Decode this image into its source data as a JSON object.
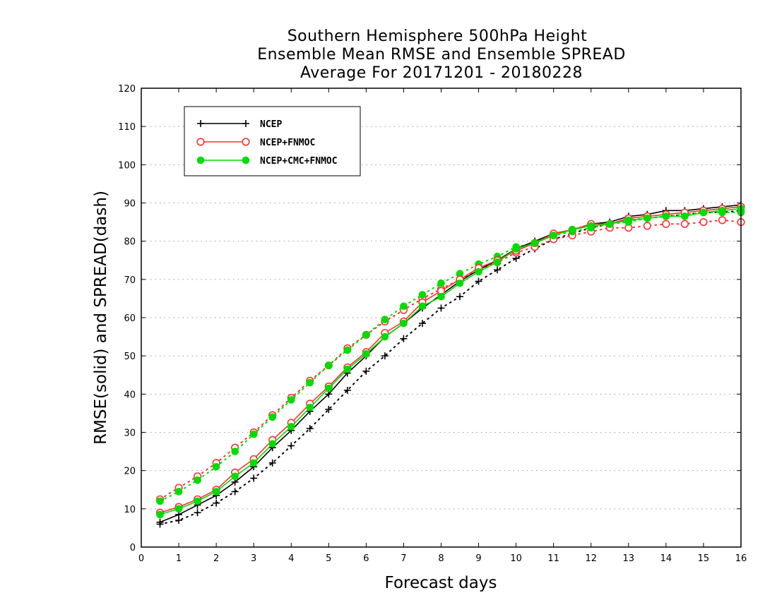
{
  "chart_data": {
    "type": "line",
    "title": [
      "Southern Hemisphere 500hPa Height",
      "Ensemble Mean RMSE and Ensemble SPREAD",
      "Average For 20171201 - 20180228"
    ],
    "xlabel": "Forecast days",
    "ylabel": "RMSE(solid) and SPREAD(dash)",
    "xlim": [
      0,
      16
    ],
    "ylim": [
      0,
      120
    ],
    "xticks": [
      "0",
      "1",
      "2",
      "3",
      "4",
      "5",
      "6",
      "7",
      "8",
      "9",
      "10",
      "11",
      "12",
      "13",
      "14",
      "15",
      "16"
    ],
    "yticks": [
      "0",
      "10",
      "20",
      "30",
      "40",
      "50",
      "60",
      "70",
      "80",
      "90",
      "100",
      "110",
      "120"
    ],
    "grid": "horizontal dotted",
    "legend_position": "top-left",
    "x": [
      0.5,
      1,
      1.5,
      2,
      2.5,
      3,
      3.5,
      4,
      4.5,
      5,
      5.5,
      6,
      6.5,
      7,
      7.5,
      8,
      8.5,
      9,
      9.5,
      10,
      10.5,
      11,
      11.5,
      12,
      12.5,
      13,
      13.5,
      14,
      14.5,
      15,
      15.5,
      16
    ],
    "series": [
      {
        "name": "NCEP",
        "color": "#000000",
        "marker": "plus",
        "rmse": [
          6.5,
          8.5,
          11,
          13.5,
          17,
          21,
          26,
          30.5,
          35.5,
          40,
          45.5,
          50,
          55,
          58.5,
          62.5,
          66,
          69.5,
          72.5,
          75,
          78,
          80,
          82,
          83,
          84.5,
          85,
          86.5,
          87,
          88,
          88,
          88.5,
          89,
          89.5
        ],
        "spread": [
          6,
          7,
          9,
          11.5,
          14.5,
          18,
          22,
          26.5,
          31,
          36,
          41,
          46,
          50,
          54.5,
          58.5,
          62.5,
          65.5,
          69.5,
          72.5,
          75.5,
          78,
          80.5,
          82,
          83.5,
          84.5,
          85.5,
          86,
          86.5,
          87,
          87.5,
          87.5,
          88
        ]
      },
      {
        "name": "NCEP+FNMOC",
        "color": "#ff3030",
        "marker": "open-circle",
        "rmse": [
          9,
          10.5,
          12.5,
          15,
          19.5,
          23,
          28,
          32.5,
          37.5,
          42,
          47,
          51,
          56,
          59,
          64,
          67,
          70,
          73,
          75,
          77.5,
          79.5,
          82,
          83,
          84.5,
          84.5,
          86,
          86.5,
          87,
          87.5,
          88,
          88.5,
          89
        ],
        "spread": [
          12.5,
          15.5,
          18.5,
          22,
          26,
          30,
          34.5,
          39,
          43.5,
          47.5,
          52,
          55.5,
          59,
          62,
          65,
          67.5,
          70,
          72.5,
          74.5,
          77,
          78.5,
          80.5,
          81.5,
          82.5,
          83.5,
          83.5,
          84,
          84.5,
          84.5,
          85,
          85.5,
          85
        ]
      },
      {
        "name": "NCEP+CMC+FNMOC",
        "color": "#00dd00",
        "marker": "filled-circle",
        "rmse": [
          8.5,
          10,
          12,
          14.5,
          18.5,
          22,
          27,
          31.5,
          36.5,
          41.5,
          46.5,
          50.5,
          55,
          58.5,
          63,
          65.5,
          69,
          72,
          74.5,
          78,
          79.5,
          81.5,
          83,
          84,
          84.5,
          85.5,
          86,
          86.5,
          86.5,
          87.5,
          88,
          88.5
        ],
        "spread": [
          12,
          14.5,
          17.5,
          21,
          25,
          29.5,
          34,
          38.5,
          43,
          47.5,
          51.5,
          55.5,
          59.5,
          63,
          66,
          69,
          71.5,
          74,
          76,
          78.5,
          79.5,
          81.5,
          82.5,
          83.5,
          84.5,
          85,
          86,
          86.5,
          87,
          87.5,
          87.5,
          87.5
        ]
      }
    ]
  }
}
